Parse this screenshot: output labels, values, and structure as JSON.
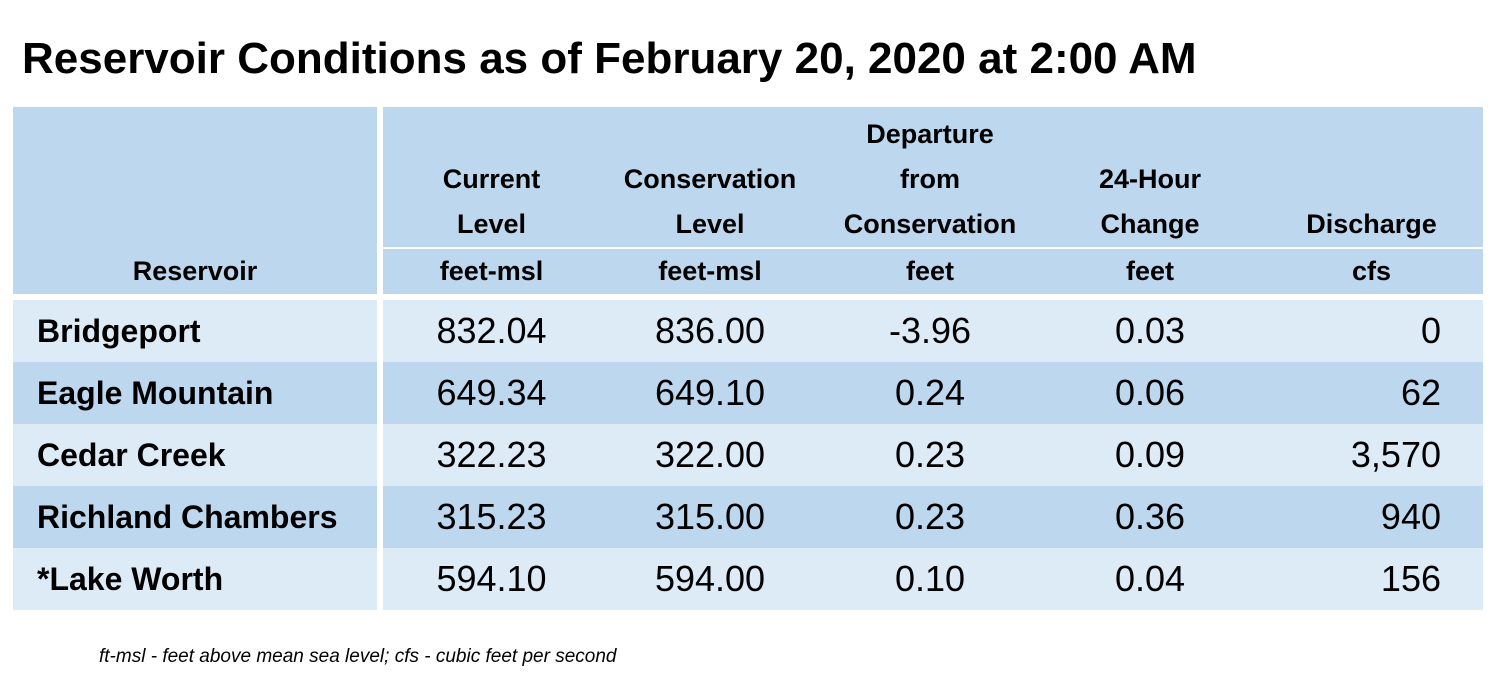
{
  "title": "Reservoir Conditions as of February 20, 2020 at 2:00 AM",
  "columns": {
    "reservoir": "Reservoir",
    "current_level": [
      "Current",
      "Level"
    ],
    "conservation_level": [
      "Conservation",
      "Level"
    ],
    "departure": [
      "Departure",
      "from",
      "Conservation"
    ],
    "change_24h": [
      "24-Hour",
      "Change"
    ],
    "discharge": "Discharge"
  },
  "units": {
    "current_level": "feet-msl",
    "conservation_level": "feet-msl",
    "departure": "feet",
    "change_24h": "feet",
    "discharge": "cfs"
  },
  "rows": [
    {
      "name": "Bridgeport",
      "current": "832.04",
      "conservation": "836.00",
      "departure": "-3.96",
      "change": "0.03",
      "discharge": "0"
    },
    {
      "name": "Eagle Mountain",
      "current": "649.34",
      "conservation": "649.10",
      "departure": "0.24",
      "change": "0.06",
      "discharge": "62"
    },
    {
      "name": "Cedar Creek",
      "current": "322.23",
      "conservation": "322.00",
      "departure": "0.23",
      "change": "0.09",
      "discharge": "3,570"
    },
    {
      "name": "Richland Chambers",
      "current": "315.23",
      "conservation": "315.00",
      "departure": "0.23",
      "change": "0.36",
      "discharge": "940"
    },
    {
      "name": "*Lake Worth",
      "current": "594.10",
      "conservation": "594.00",
      "departure": "0.10",
      "change": "0.04",
      "discharge": "156"
    }
  ],
  "footnote": "ft-msl - feet above mean sea level; cfs - cubic feet per second",
  "colors": {
    "header_bg": "#bdd7ee",
    "row_light": "#ddebf7",
    "row_dark": "#bdd7ee"
  }
}
